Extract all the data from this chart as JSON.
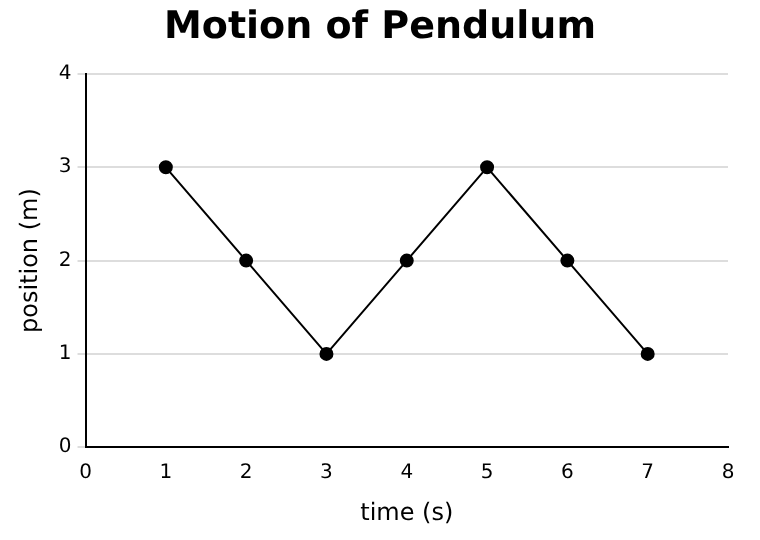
{
  "chart_data": {
    "type": "line",
    "title": "Motion of Pendulum",
    "xlabel": "time (s)",
    "ylabel": "position (m)",
    "x": [
      1,
      2,
      3,
      4,
      5,
      6,
      7
    ],
    "series": [
      {
        "color": "#000000",
        "values": [
          3,
          2,
          1,
          2,
          3,
          2,
          1
        ]
      }
    ],
    "xlim": [
      0,
      8
    ],
    "xticks": [
      0,
      1,
      2,
      3,
      4,
      5,
      6,
      7,
      8
    ],
    "ylim": [
      0,
      4
    ],
    "yticks": [
      0,
      1,
      2,
      3,
      4
    ],
    "grid": "y",
    "marker": "circle",
    "line_style": "solid",
    "legend": false
  }
}
